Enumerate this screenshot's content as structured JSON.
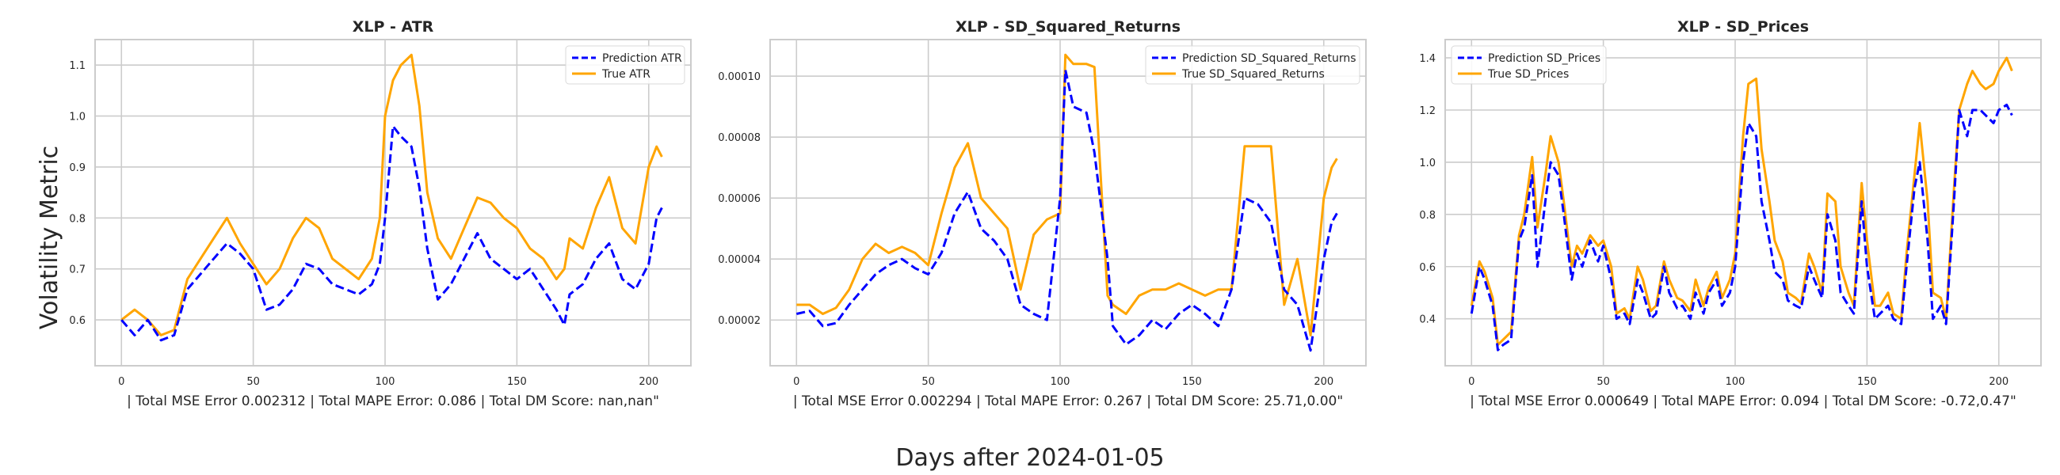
{
  "figure": {
    "ylabel": "Volatility Metric",
    "xlabel": "Days after 2024-01-05",
    "colors": {
      "prediction": "#0000ff",
      "true": "#ffa500",
      "grid": "#cccccc",
      "axes_edge": "#cccccc"
    }
  },
  "chart_data": [
    {
      "type": "line",
      "title": "XLP - ATR",
      "xlabel": "| Total MSE Error 0.002312 | Total MAPE Error: 0.086 | Total DM Score: nan,nan\"",
      "xlim": [
        -10,
        216
      ],
      "ylim": [
        0.51,
        1.15
      ],
      "xticks": [
        0,
        50,
        100,
        150,
        200
      ],
      "yticks": [
        0.6,
        0.7,
        0.8,
        0.9,
        1.0,
        1.1
      ],
      "ytick_labels": [
        "0.6",
        "0.7",
        "0.8",
        "0.9",
        "1.0",
        "1.1"
      ],
      "legend_loc": "upper right",
      "series": [
        {
          "name": "Prediction ATR",
          "style": "dashed",
          "color": "#0000ff",
          "x": [
            0,
            5,
            10,
            15,
            20,
            25,
            30,
            35,
            40,
            45,
            50,
            55,
            60,
            65,
            70,
            75,
            80,
            85,
            90,
            95,
            98,
            100,
            103,
            106,
            110,
            113,
            116,
            120,
            125,
            130,
            135,
            140,
            145,
            150,
            155,
            160,
            165,
            168,
            170,
            175,
            180,
            185,
            190,
            195,
            200,
            203,
            205
          ],
          "y": [
            0.6,
            0.57,
            0.6,
            0.56,
            0.57,
            0.66,
            0.69,
            0.72,
            0.75,
            0.73,
            0.7,
            0.62,
            0.63,
            0.66,
            0.71,
            0.7,
            0.67,
            0.66,
            0.65,
            0.67,
            0.71,
            0.8,
            0.98,
            0.96,
            0.94,
            0.86,
            0.74,
            0.64,
            0.67,
            0.72,
            0.77,
            0.72,
            0.7,
            0.68,
            0.7,
            0.66,
            0.62,
            0.59,
            0.65,
            0.67,
            0.72,
            0.75,
            0.68,
            0.66,
            0.71,
            0.8,
            0.82
          ]
        },
        {
          "name": "True ATR",
          "style": "solid",
          "color": "#ffa500",
          "x": [
            0,
            5,
            10,
            15,
            20,
            25,
            30,
            35,
            40,
            45,
            50,
            55,
            60,
            65,
            70,
            75,
            80,
            85,
            90,
            95,
            98,
            100,
            103,
            106,
            110,
            113,
            116,
            120,
            125,
            130,
            135,
            140,
            145,
            150,
            155,
            160,
            165,
            168,
            170,
            175,
            180,
            185,
            190,
            195,
            200,
            203,
            205
          ],
          "y": [
            0.6,
            0.62,
            0.6,
            0.57,
            0.58,
            0.68,
            0.72,
            0.76,
            0.8,
            0.75,
            0.71,
            0.67,
            0.7,
            0.76,
            0.8,
            0.78,
            0.72,
            0.7,
            0.68,
            0.72,
            0.8,
            1.0,
            1.07,
            1.1,
            1.12,
            1.02,
            0.85,
            0.76,
            0.72,
            0.78,
            0.84,
            0.83,
            0.8,
            0.78,
            0.74,
            0.72,
            0.68,
            0.7,
            0.76,
            0.74,
            0.82,
            0.88,
            0.78,
            0.75,
            0.9,
            0.94,
            0.92
          ]
        }
      ]
    },
    {
      "type": "line",
      "title": "XLP - SD_Squared_Returns",
      "xlabel": "| Total MSE Error 0.002294 | Total MAPE Error: 0.267 | Total DM Score: 25.71,0.00\"",
      "xlim": [
        -10,
        216
      ],
      "ylim": [
        5e-06,
        0.000112
      ],
      "xticks": [
        0,
        50,
        100,
        150,
        200
      ],
      "yticks": [
        2e-05,
        4e-05,
        6e-05,
        8e-05,
        0.0001
      ],
      "ytick_labels": [
        "0.00002",
        "0.00004",
        "0.00006",
        "0.00008",
        "0.00010"
      ],
      "legend_loc": "upper right",
      "series": [
        {
          "name": "Prediction SD_Squared_Returns",
          "style": "dashed",
          "color": "#0000ff",
          "x": [
            0,
            5,
            10,
            15,
            20,
            25,
            30,
            35,
            40,
            45,
            50,
            55,
            60,
            65,
            70,
            75,
            80,
            85,
            90,
            95,
            100,
            102,
            105,
            110,
            113,
            118,
            120,
            125,
            130,
            135,
            140,
            145,
            150,
            155,
            160,
            165,
            170,
            175,
            180,
            185,
            190,
            195,
            200,
            203,
            205
          ],
          "y": [
            2.2e-05,
            2.3e-05,
            1.8e-05,
            1.9e-05,
            2.5e-05,
            3e-05,
            3.5e-05,
            3.8e-05,
            4e-05,
            3.7e-05,
            3.5e-05,
            4.2e-05,
            5.5e-05,
            6.2e-05,
            5e-05,
            4.6e-05,
            4e-05,
            2.5e-05,
            2.2e-05,
            2e-05,
            6e-05,
            0.000102,
            9e-05,
            8.8e-05,
            7.5e-05,
            4e-05,
            1.8e-05,
            1.2e-05,
            1.5e-05,
            2e-05,
            1.7e-05,
            2.2e-05,
            2.5e-05,
            2.2e-05,
            1.8e-05,
            3e-05,
            6e-05,
            5.8e-05,
            5.2e-05,
            3e-05,
            2.5e-05,
            1e-05,
            4e-05,
            5.2e-05,
            5.5e-05
          ]
        },
        {
          "name": "True SD_Squared_Returns",
          "style": "solid",
          "color": "#ffa500",
          "x": [
            0,
            5,
            10,
            15,
            20,
            25,
            30,
            35,
            40,
            45,
            50,
            55,
            60,
            65,
            70,
            75,
            80,
            85,
            90,
            95,
            100,
            102,
            105,
            110,
            113,
            118,
            120,
            125,
            130,
            135,
            140,
            145,
            150,
            155,
            160,
            165,
            170,
            175,
            180,
            185,
            190,
            195,
            200,
            203,
            205
          ],
          "y": [
            2.5e-05,
            2.5e-05,
            2.2e-05,
            2.4e-05,
            3e-05,
            4e-05,
            4.5e-05,
            4.2e-05,
            4.4e-05,
            4.2e-05,
            3.8e-05,
            5.5e-05,
            7e-05,
            7.8e-05,
            6e-05,
            5.5e-05,
            5e-05,
            3e-05,
            4.8e-05,
            5.3e-05,
            5.5e-05,
            0.000107,
            0.000104,
            0.000104,
            0.000103,
            2.8e-05,
            2.5e-05,
            2.2e-05,
            2.8e-05,
            3e-05,
            3e-05,
            3.2e-05,
            3e-05,
            2.8e-05,
            3e-05,
            3e-05,
            7.7e-05,
            7.7e-05,
            7.7e-05,
            2.5e-05,
            4e-05,
            1.5e-05,
            6e-05,
            7e-05,
            7.3e-05
          ]
        }
      ]
    },
    {
      "type": "line",
      "title": "XLP - SD_Prices",
      "xlabel": "| Total MSE Error 0.000649 | Total MAPE Error: 0.094 | Total DM Score: -0.72,0.47\"",
      "xlim": [
        -10,
        216
      ],
      "ylim": [
        0.22,
        1.47
      ],
      "xticks": [
        0,
        50,
        100,
        150,
        200
      ],
      "yticks": [
        0.4,
        0.6,
        0.8,
        1.0,
        1.2,
        1.4
      ],
      "ytick_labels": [
        "0.4",
        "0.6",
        "0.8",
        "1.0",
        "1.2",
        "1.4"
      ],
      "legend_loc": "upper left",
      "series": [
        {
          "name": "Prediction SD_Prices",
          "style": "dashed",
          "color": "#0000ff",
          "x": [
            0,
            3,
            5,
            8,
            10,
            12,
            15,
            18,
            20,
            23,
            25,
            28,
            30,
            33,
            35,
            38,
            40,
            42,
            45,
            48,
            50,
            53,
            55,
            58,
            60,
            63,
            65,
            68,
            70,
            73,
            75,
            78,
            80,
            83,
            85,
            88,
            90,
            93,
            95,
            98,
            100,
            103,
            105,
            108,
            110,
            113,
            115,
            118,
            120,
            123,
            125,
            128,
            130,
            133,
            135,
            138,
            140,
            143,
            145,
            148,
            150,
            153,
            155,
            158,
            160,
            163,
            165,
            168,
            170,
            173,
            175,
            178,
            180,
            183,
            185,
            188,
            190,
            193,
            195,
            198,
            200,
            203,
            205
          ],
          "y": [
            0.42,
            0.6,
            0.55,
            0.45,
            0.28,
            0.3,
            0.32,
            0.7,
            0.75,
            0.95,
            0.6,
            0.85,
            1.0,
            0.95,
            0.8,
            0.55,
            0.65,
            0.6,
            0.7,
            0.62,
            0.68,
            0.55,
            0.4,
            0.42,
            0.38,
            0.55,
            0.5,
            0.4,
            0.42,
            0.6,
            0.5,
            0.44,
            0.45,
            0.4,
            0.5,
            0.42,
            0.5,
            0.55,
            0.45,
            0.5,
            0.6,
            1.0,
            1.15,
            1.1,
            0.85,
            0.7,
            0.58,
            0.55,
            0.47,
            0.45,
            0.44,
            0.6,
            0.55,
            0.48,
            0.8,
            0.7,
            0.5,
            0.45,
            0.42,
            0.85,
            0.6,
            0.4,
            0.42,
            0.45,
            0.4,
            0.38,
            0.6,
            0.9,
            1.0,
            0.7,
            0.4,
            0.45,
            0.38,
            0.85,
            1.2,
            1.1,
            1.2,
            1.2,
            1.18,
            1.15,
            1.2,
            1.22,
            1.18
          ]
        },
        {
          "name": "True SD_Prices",
          "style": "solid",
          "color": "#ffa500",
          "x": [
            0,
            3,
            5,
            8,
            10,
            12,
            15,
            18,
            20,
            23,
            25,
            28,
            30,
            33,
            35,
            38,
            40,
            42,
            45,
            48,
            50,
            53,
            55,
            58,
            60,
            63,
            65,
            68,
            70,
            73,
            75,
            78,
            80,
            83,
            85,
            88,
            90,
            93,
            95,
            98,
            100,
            103,
            105,
            108,
            110,
            113,
            115,
            118,
            120,
            123,
            125,
            128,
            130,
            133,
            135,
            138,
            140,
            143,
            145,
            148,
            150,
            153,
            155,
            158,
            160,
            163,
            165,
            168,
            170,
            173,
            175,
            178,
            180,
            183,
            185,
            188,
            190,
            193,
            195,
            198,
            200,
            203,
            205
          ],
          "y": [
            0.45,
            0.62,
            0.58,
            0.48,
            0.3,
            0.32,
            0.35,
            0.72,
            0.8,
            1.02,
            0.75,
            0.95,
            1.1,
            1.0,
            0.85,
            0.6,
            0.68,
            0.65,
            0.72,
            0.68,
            0.7,
            0.6,
            0.42,
            0.44,
            0.4,
            0.6,
            0.55,
            0.43,
            0.45,
            0.62,
            0.55,
            0.48,
            0.47,
            0.43,
            0.55,
            0.45,
            0.52,
            0.58,
            0.48,
            0.55,
            0.65,
            1.1,
            1.3,
            1.32,
            1.05,
            0.85,
            0.7,
            0.62,
            0.5,
            0.48,
            0.46,
            0.65,
            0.6,
            0.5,
            0.88,
            0.85,
            0.6,
            0.5,
            0.45,
            0.92,
            0.7,
            0.45,
            0.45,
            0.5,
            0.42,
            0.4,
            0.65,
            0.95,
            1.15,
            0.85,
            0.5,
            0.48,
            0.4,
            0.9,
            1.2,
            1.3,
            1.35,
            1.3,
            1.28,
            1.3,
            1.35,
            1.4,
            1.35
          ]
        }
      ]
    }
  ]
}
